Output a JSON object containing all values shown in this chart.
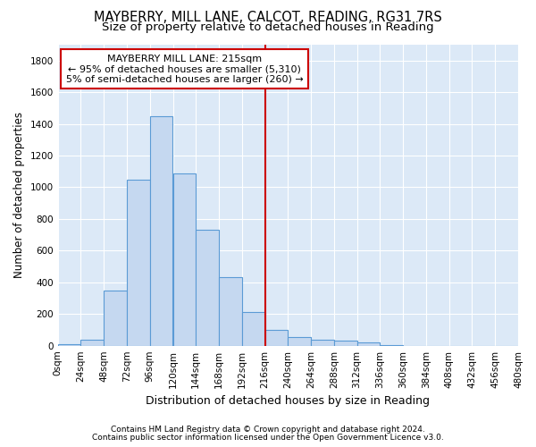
{
  "title": "MAYBERRY, MILL LANE, CALCOT, READING, RG31 7RS",
  "subtitle": "Size of property relative to detached houses in Reading",
  "xlabel": "Distribution of detached houses by size in Reading",
  "ylabel": "Number of detached properties",
  "footnote1": "Contains HM Land Registry data © Crown copyright and database right 2024.",
  "footnote2": "Contains public sector information licensed under the Open Government Licence v3.0.",
  "bar_edges": [
    0,
    24,
    48,
    72,
    96,
    120,
    144,
    168,
    192,
    216,
    240,
    264,
    288,
    312,
    336,
    360,
    384,
    408,
    432,
    456,
    480
  ],
  "bar_heights": [
    10,
    35,
    350,
    1050,
    1450,
    1090,
    730,
    430,
    215,
    100,
    55,
    40,
    30,
    20,
    5,
    0,
    0,
    0,
    0,
    0
  ],
  "bar_color": "#c5d8f0",
  "bar_edge_color": "#5b9bd5",
  "fig_background": "#ffffff",
  "plot_background": "#dce9f7",
  "grid_color": "#ffffff",
  "vline_x": 216,
  "vline_color": "#cc0000",
  "annotation_line1": "MAYBERRY MILL LANE: 215sqm",
  "annotation_line2": "← 95% of detached houses are smaller (5,310)",
  "annotation_line3": "5% of semi-detached houses are larger (260) →",
  "annotation_box_color": "#cc0000",
  "ylim": [
    0,
    1900
  ],
  "yticks": [
    0,
    200,
    400,
    600,
    800,
    1000,
    1200,
    1400,
    1600,
    1800
  ],
  "xlim": [
    0,
    480
  ],
  "tick_labels": [
    "0sqm",
    "24sqm",
    "48sqm",
    "72sqm",
    "96sqm",
    "120sqm",
    "144sqm",
    "168sqm",
    "192sqm",
    "216sqm",
    "240sqm",
    "264sqm",
    "288sqm",
    "312sqm",
    "336sqm",
    "360sqm",
    "384sqm",
    "408sqm",
    "432sqm",
    "456sqm",
    "480sqm"
  ],
  "title_fontsize": 10.5,
  "subtitle_fontsize": 9.5,
  "xlabel_fontsize": 9,
  "ylabel_fontsize": 8.5,
  "tick_fontsize": 7.5,
  "annotation_fontsize": 8,
  "footnote_fontsize": 6.5
}
